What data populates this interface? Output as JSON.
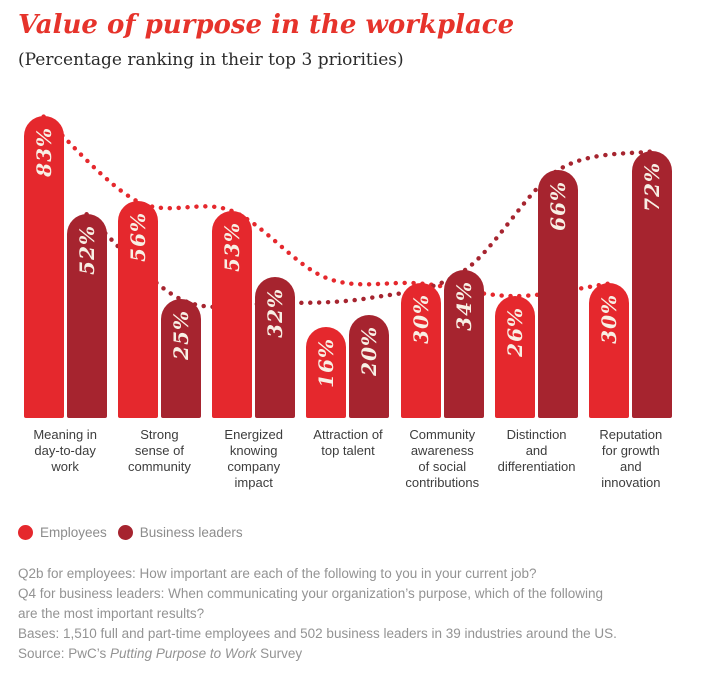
{
  "header": {
    "title": "Value of purpose in the workplace",
    "subtitle": "(Percentage ranking in their top 3 priorities)"
  },
  "chart_data": {
    "type": "bar",
    "title": "Value of purpose in the workplace",
    "subtitle": "(Percentage ranking in their top 3 priorities)",
    "categories": [
      "Meaning in day-to-day work",
      "Strong sense of community",
      "Energized knowing company impact",
      "Attraction of top talent",
      "Community awareness of social contributions",
      "Distinction and differentiation",
      "Reputation for growth and innovation"
    ],
    "category_label_lines": [
      [
        "Meaning in",
        "day-to-day",
        "work"
      ],
      [
        "Strong",
        "sense of",
        "community"
      ],
      [
        "Energized",
        "knowing",
        "company",
        "impact"
      ],
      [
        "Attraction of",
        "top talent"
      ],
      [
        "Community",
        "awareness",
        "of social",
        "contributions"
      ],
      [
        "Distinction",
        "and",
        "differentiation"
      ],
      [
        "Reputation",
        "for growth",
        "and",
        "innovation"
      ]
    ],
    "series": [
      {
        "name": "Employees",
        "color": "#e5282d",
        "values": [
          83,
          56,
          53,
          16,
          30,
          26,
          30
        ]
      },
      {
        "name": "Business leaders",
        "color": "#a6242f",
        "values": [
          52,
          25,
          32,
          20,
          34,
          66,
          72
        ]
      }
    ],
    "value_suffix": "%",
    "value_label_color": "#f8f0e5",
    "ylim": [
      0,
      100
    ],
    "grid": false,
    "trendlines": "dotted smoothed curve through each series' bar tops",
    "legend_position": "bottom-left",
    "bar_caps": "rounded-top"
  },
  "legend": {
    "items": [
      {
        "label": "Employees",
        "color": "#e5282d"
      },
      {
        "label": "Business leaders",
        "color": "#a6242f"
      }
    ]
  },
  "footnotes": {
    "lines": [
      "Q2b for employees: How important are each of the following to you in your current job?",
      "Q4 for business leaders: When communicating your organization’s purpose, which of the following",
      "are the most important results?",
      "Bases: 1,510 full and part-time employees and 502 business leaders in 39 industries around the US."
    ],
    "source_prefix": "Source: PwC’s ",
    "source_italic": "Putting Purpose to Work",
    "source_suffix": " Survey"
  }
}
